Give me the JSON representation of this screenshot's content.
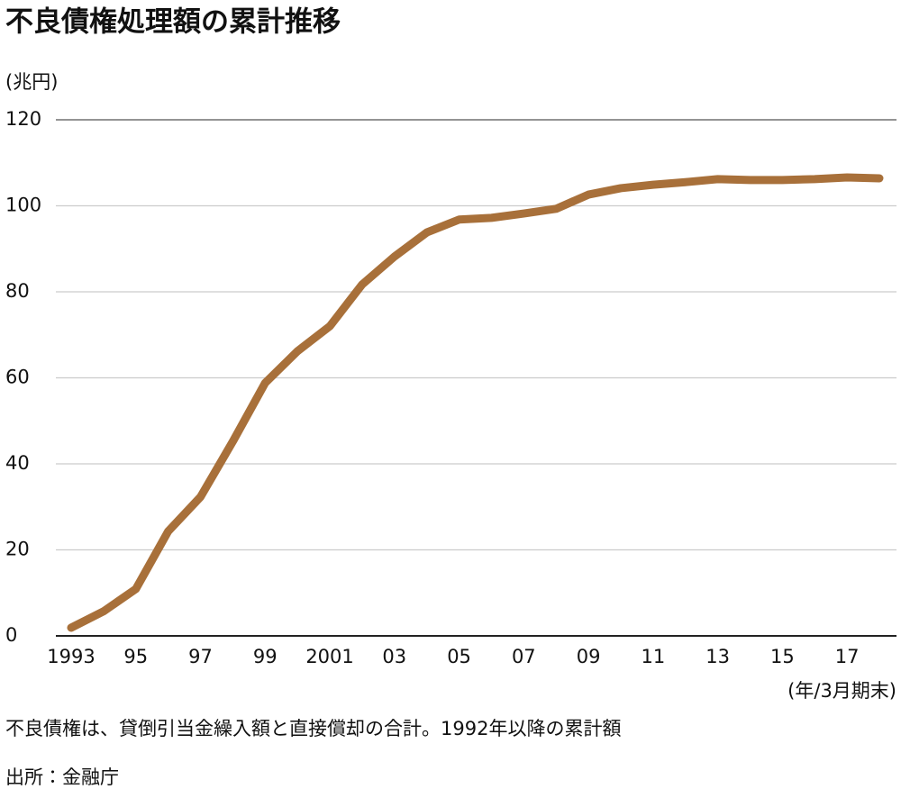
{
  "chart_data": {
    "type": "line",
    "title": "不良債権処理額の累計推移",
    "y_label": "(兆円)",
    "x_label": "(年/3月期末)",
    "note": "不良債権は、貸倒引当金繰入額と直接償却の合計。1992年以降の累計額",
    "source": "出所：金融庁",
    "categories": [
      "1993",
      null,
      "95",
      null,
      "97",
      null,
      "99",
      null,
      "2001",
      null,
      "03",
      null,
      "05",
      null,
      "07",
      null,
      "09",
      null,
      "11",
      null,
      "13",
      null,
      "15",
      null,
      "17",
      null
    ],
    "series": [
      {
        "name": "不良債権処理額の累計",
        "color": "#a8703a",
        "values": [
          1.9,
          5.7,
          10.9,
          24.3,
          32.3,
          45.2,
          58.8,
          66.2,
          72.0,
          81.7,
          88.2,
          93.8,
          96.8,
          97.2,
          98.2,
          99.3,
          102.6,
          104.1,
          104.9,
          105.5,
          106.2,
          106.0,
          106.0,
          106.2,
          106.6,
          106.4
        ]
      }
    ],
    "ylim": [
      0,
      120
    ],
    "yticks": [
      0,
      20,
      40,
      60,
      80,
      100,
      120
    ],
    "grid": true
  }
}
